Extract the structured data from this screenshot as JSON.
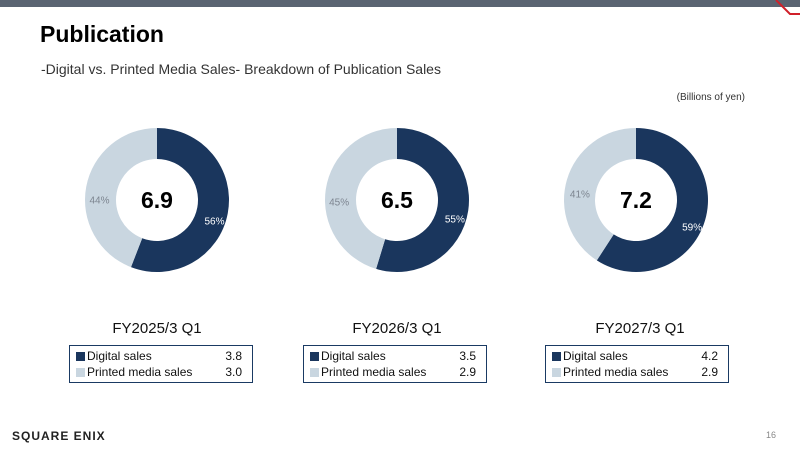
{
  "header": {
    "title": "Publication",
    "subtitle": "-Digital vs. Printed Media Sales- Breakdown of Publication Sales",
    "unit_note": "(Billions of yen)"
  },
  "colors": {
    "digital": "#1a365d",
    "printed": "#c9d6e0",
    "top_bar": "#5a6472",
    "accent_red": "#d0202a"
  },
  "chart_data": [
    {
      "type": "pie",
      "title": "FY2025/3 Q1",
      "total": "6.9",
      "categories": [
        "Digital sales",
        "Printed media sales"
      ],
      "values": [
        3.8,
        3.0
      ],
      "value_labels": [
        "3.8",
        "3.0"
      ],
      "percents": [
        56,
        44
      ],
      "percent_labels": [
        "56%",
        "44%"
      ]
    },
    {
      "type": "pie",
      "title": "FY2026/3 Q1",
      "total": "6.5",
      "categories": [
        "Digital sales",
        "Printed media sales"
      ],
      "values": [
        3.5,
        2.9
      ],
      "value_labels": [
        "3.5",
        "2.9"
      ],
      "percents": [
        55,
        45
      ],
      "percent_labels": [
        "55%",
        "45%"
      ]
    },
    {
      "type": "pie",
      "title": "FY2027/3 Q1",
      "total": "7.2",
      "categories": [
        "Digital sales",
        "Printed media sales"
      ],
      "values": [
        4.2,
        2.9
      ],
      "value_labels": [
        "4.2",
        "2.9"
      ],
      "percents": [
        59,
        41
      ],
      "percent_labels": [
        "59%",
        "41%"
      ]
    }
  ],
  "footer": {
    "logo_text": "SQUARE ENIX",
    "page_number": "16"
  }
}
